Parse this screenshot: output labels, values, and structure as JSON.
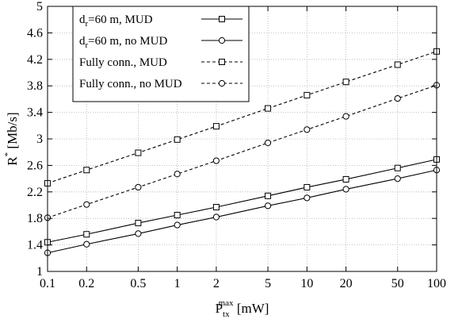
{
  "chart_data": {
    "type": "line",
    "x_scale": "log",
    "xlabel": {
      "main": "P",
      "sub": "tx",
      "sup": "max",
      "unit": " [mW]"
    },
    "ylabel": {
      "main": "R",
      "sup": "*",
      "unit": " [Mb/s]"
    },
    "x": [
      0.1,
      0.2,
      0.5,
      1,
      2,
      5,
      10,
      20,
      50,
      100
    ],
    "x_tick_labels": [
      "0.1",
      "0.2",
      "0.5",
      "1",
      "2",
      "5",
      "10",
      "20",
      "50",
      "100"
    ],
    "ylim": [
      1,
      5
    ],
    "y_ticks": [
      1,
      1.4,
      1.8,
      2.2,
      2.6,
      3,
      3.4,
      3.8,
      4.2,
      4.6,
      5
    ],
    "y_tick_labels": [
      "1",
      "1.4",
      "1.8",
      "2.2",
      "2.6",
      "3",
      "3.4",
      "3.8",
      "4.2",
      "4.6",
      "5"
    ],
    "grid": true,
    "legend_position": "top-left",
    "series": [
      {
        "name": {
          "pre": "d",
          "sub": "r",
          "post": "=60 m, MUD"
        },
        "marker": "square",
        "dashed": false,
        "values": [
          1.44,
          1.56,
          1.73,
          1.85,
          1.97,
          2.14,
          2.27,
          2.39,
          2.56,
          2.69
        ]
      },
      {
        "name": {
          "pre": "d",
          "sub": "r",
          "post": "=60 m, no MUD"
        },
        "marker": "circle",
        "dashed": false,
        "values": [
          1.28,
          1.41,
          1.57,
          1.7,
          1.82,
          1.99,
          2.11,
          2.24,
          2.4,
          2.53
        ]
      },
      {
        "name": {
          "pre": "Fully conn., MUD",
          "sub": "",
          "post": ""
        },
        "marker": "square",
        "dashed": true,
        "values": [
          2.33,
          2.53,
          2.79,
          2.99,
          3.19,
          3.46,
          3.66,
          3.86,
          4.12,
          4.32
        ]
      },
      {
        "name": {
          "pre": "Fully conn., no MUD",
          "sub": "",
          "post": ""
        },
        "marker": "circle",
        "dashed": true,
        "values": [
          1.81,
          2.01,
          2.27,
          2.47,
          2.67,
          2.94,
          3.14,
          3.34,
          3.61,
          3.81
        ]
      }
    ]
  }
}
